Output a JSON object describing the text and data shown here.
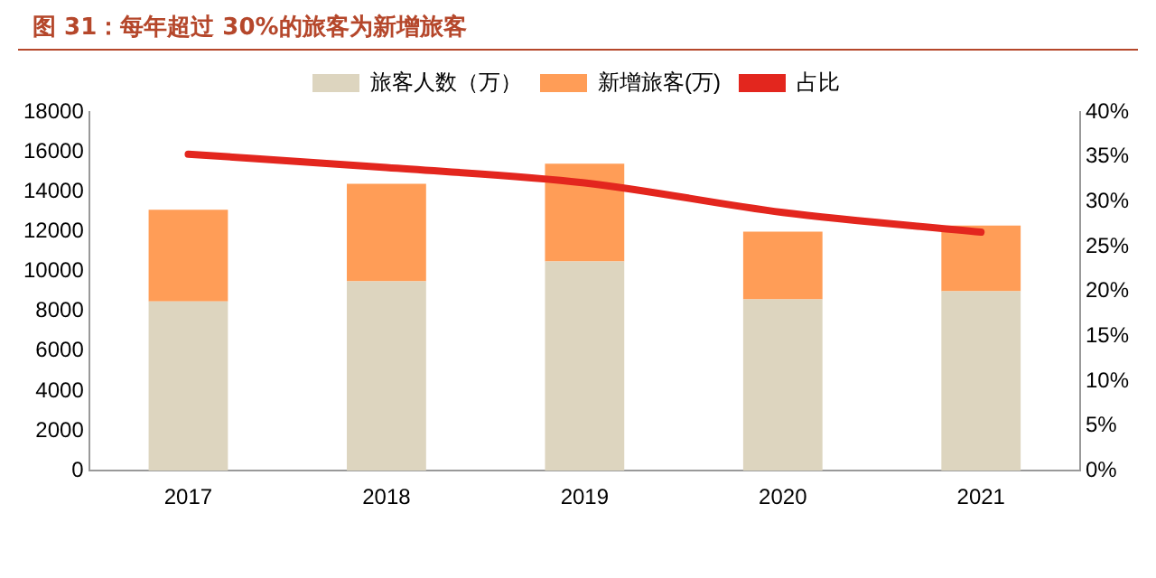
{
  "chart_data": {
    "type": "bar",
    "title": "图 31：每年超过 30%的旅客为新增旅客",
    "stacked": true,
    "legend": "top",
    "grid": false,
    "categories": [
      "2017",
      "2018",
      "2019",
      "2020",
      "2021"
    ],
    "series": [
      {
        "name": "旅客人数（万）",
        "color": "#ddd5bf",
        "values": [
          8500,
          9500,
          10500,
          8600,
          9000
        ]
      },
      {
        "name": "新增旅客(万)",
        "color": "#ff9d57",
        "values": [
          4600,
          4900,
          4900,
          3400,
          3300
        ]
      },
      {
        "name": "占比",
        "type": "line",
        "axis": "y2",
        "color": "#e3261e",
        "values": [
          35.3,
          33.8,
          32.1,
          28.8,
          26.6
        ]
      }
    ],
    "ylim": [
      0,
      18000
    ],
    "yticks": [
      0,
      2000,
      4000,
      6000,
      8000,
      10000,
      12000,
      14000,
      16000,
      18000
    ],
    "y2lim": [
      0,
      40
    ],
    "y2ticks": [
      {
        "value": 0,
        "label": "0%"
      },
      {
        "value": 5,
        "label": "5%"
      },
      {
        "value": 10,
        "label": "10%"
      },
      {
        "value": 15,
        "label": "15%"
      },
      {
        "value": 20,
        "label": "20%"
      },
      {
        "value": 25,
        "label": "25%"
      },
      {
        "value": 30,
        "label": "30%"
      },
      {
        "value": 35,
        "label": "35%"
      },
      {
        "value": 40,
        "label": "40%"
      }
    ]
  }
}
